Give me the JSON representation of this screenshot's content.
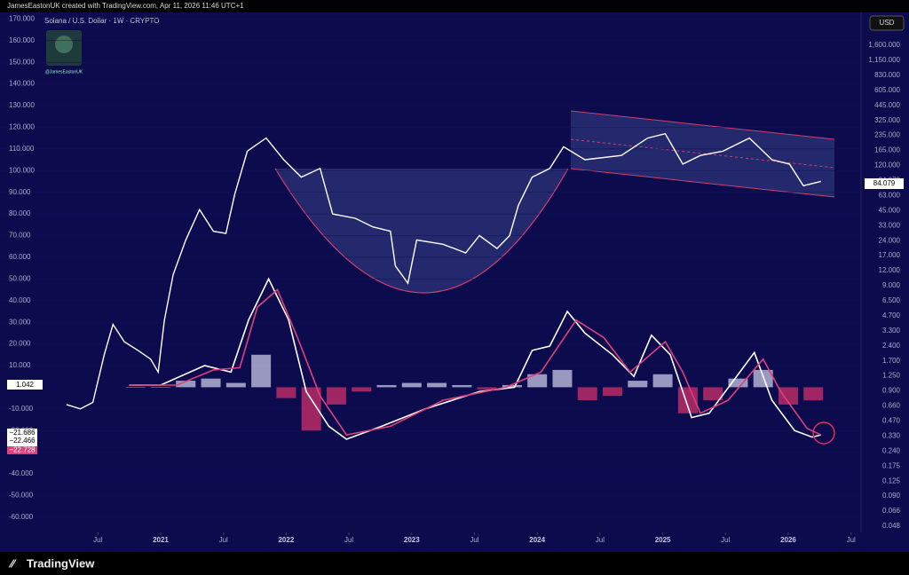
{
  "header": "JamesEastonUK created with TradingView.com, Apr 11, 2026 11:46 UTC+1",
  "footer": "TradingView",
  "watermark": "@JamesEastonUK",
  "currency": "USD",
  "last_price": "84.079",
  "indicator_labels": [
    "1.042",
    "−21.686",
    "−22.466",
    "−22.728"
  ],
  "price_scale": {
    "labels": [
      "1,600.000",
      "1,150.000",
      "830.000",
      "605.000",
      "445.000",
      "325.000",
      "235.000",
      "165.000",
      "120.000",
      "84.079",
      "63.000",
      "45.000",
      "33.000",
      "24.000",
      "17.000",
      "12.000",
      "9.000",
      "6.500",
      "4.700",
      "3.300",
      "2.400",
      "1.700",
      "1.250",
      "0.900",
      "0.660",
      "0.470",
      "0.330",
      "0.240",
      "0.175",
      "0.125",
      "0.090",
      "0.066",
      "0.048"
    ]
  },
  "chart_data": {
    "type": "line",
    "title": "Solana / U.S. Dollar · 1W · CRYPTO",
    "xlim": [
      2019.72,
      2026.58
    ],
    "xticks": [
      {
        "value": 2020.5,
        "label": "Jul"
      },
      2021,
      {
        "value": 2021.5,
        "label": "Jul"
      },
      2022,
      {
        "value": 2022.5,
        "label": "Jul"
      },
      2023,
      {
        "value": 2023.5,
        "label": "Jul"
      },
      2024,
      {
        "value": 2024.5,
        "label": "Jul"
      },
      2025,
      {
        "value": 2025.5,
        "label": "Jul"
      },
      2026,
      {
        "value": 2026.5,
        "label": "Jul"
      }
    ],
    "ylim": [
      -67,
      173
    ],
    "yticks": [
      {
        "value": 170,
        "label": "170.000"
      },
      {
        "value": 160,
        "label": "160.000"
      },
      {
        "value": 150,
        "label": "150.000"
      },
      {
        "value": 140,
        "label": "140.000"
      },
      {
        "value": 130,
        "label": "130.000"
      },
      {
        "value": 120,
        "label": "120.000"
      },
      {
        "value": 110,
        "label": "110.000"
      },
      {
        "value": 100,
        "label": "100.000"
      },
      {
        "value": 90,
        "label": "90.000"
      },
      {
        "value": 80,
        "label": "80.000"
      },
      {
        "value": 70,
        "label": "70.000"
      },
      {
        "value": 60,
        "label": "60.000"
      },
      {
        "value": 50,
        "label": "50.000"
      },
      {
        "value": 40,
        "label": "40.000"
      },
      {
        "value": 30,
        "label": "30.000"
      },
      {
        "value": 20,
        "label": "20.000"
      },
      {
        "value": 10,
        "label": "10.000"
      },
      {
        "value": -10,
        "label": "-10.000"
      },
      {
        "value": -20,
        "label": "-20.000"
      },
      {
        "value": -30,
        "label": "-30.000"
      },
      {
        "value": -40,
        "label": "-40.000"
      },
      {
        "value": -50,
        "label": "-50.000"
      },
      {
        "value": -60,
        "label": "-60.000"
      }
    ],
    "series": [
      {
        "color": "#ffffff",
        "x": [
          2020.25,
          2020.36,
          2020.46,
          2020.55,
          2020.62,
          2020.71,
          2020.82,
          2020.92,
          2020.98,
          2021.03,
          2021.1,
          2021.2,
          2021.31,
          2021.42,
          2021.52,
          2021.59,
          2021.69,
          2021.84,
          2021.98,
          2022.12,
          2022.27,
          2022.37,
          2022.55,
          2022.69,
          2022.83,
          2022.87,
          2022.97,
          2023.04,
          2023.25,
          2023.43,
          2023.54,
          2023.68,
          2023.78,
          2023.85,
          2023.96,
          2024.1,
          2024.21,
          2024.38,
          2024.67,
          2024.88,
          2025.02,
          2025.16,
          2025.3,
          2025.48,
          2025.69,
          2025.87,
          2026.01,
          2026.12,
          2026.26
        ],
        "values": [
          -8,
          -10,
          -7,
          15,
          29,
          21,
          17,
          13,
          7,
          31,
          52,
          68,
          82,
          72,
          71,
          89,
          109,
          115,
          105,
          97,
          101,
          80,
          78,
          74,
          72,
          56,
          48,
          68,
          66,
          62,
          70,
          64,
          70,
          84,
          97,
          101,
          111,
          105,
          107,
          115,
          117,
          103,
          107,
          109,
          115,
          105,
          103,
          93,
          95
        ]
      },
      {
        "color": "#ffffff",
        "x": [
          2020.75,
          2021.0,
          2021.35,
          2021.56,
          2021.7,
          2021.86,
          2022.02,
          2022.16,
          2022.34,
          2022.48,
          2022.76,
          2023.11,
          2023.54,
          2023.82,
          2023.96,
          2024.1,
          2024.24,
          2024.38,
          2024.6,
          2024.77,
          2024.91,
          2025.06,
          2025.23,
          2025.37,
          2025.55,
          2025.73,
          2025.87,
          2026.05,
          2026.19,
          2026.26
        ],
        "values": [
          1,
          1,
          10,
          7,
          31,
          50,
          31,
          -2,
          -18,
          -24,
          -18,
          -10,
          -2,
          0,
          17,
          19,
          35,
          25,
          15,
          5,
          24,
          15,
          -14,
          -12,
          2,
          16,
          -6,
          -20,
          -23,
          -22
        ]
      },
      {
        "color": "#e0407a",
        "x": [
          2020.75,
          2021.13,
          2021.42,
          2021.63,
          2021.77,
          2021.93,
          2022.09,
          2022.27,
          2022.48,
          2022.83,
          2023.25,
          2023.75,
          2024.03,
          2024.31,
          2024.53,
          2024.74,
          2025.02,
          2025.16,
          2025.3,
          2025.52,
          2025.8,
          2025.94,
          2026.15,
          2026.26
        ],
        "values": [
          1,
          1,
          8,
          9,
          37,
          45,
          23,
          -4,
          -22,
          -18,
          -6,
          0,
          7,
          31,
          23,
          7,
          21,
          7,
          -12,
          -6,
          13,
          -2,
          -19,
          -22
        ]
      }
    ],
    "histogram": {
      "up_color": "#c9c9e6",
      "down_color": "#d0306a",
      "x": [
        2020.8,
        2021.0,
        2021.2,
        2021.4,
        2021.6,
        2021.8,
        2022.0,
        2022.2,
        2022.4,
        2022.6,
        2022.8,
        2023.0,
        2023.2,
        2023.4,
        2023.6,
        2023.8,
        2024.0,
        2024.2,
        2024.4,
        2024.6,
        2024.8,
        2025.0,
        2025.2,
        2025.4,
        2025.6,
        2025.8,
        2026.0,
        2026.2
      ],
      "values": [
        0,
        0,
        3,
        4,
        2,
        15,
        -5,
        -20,
        -8,
        -2,
        1,
        2,
        2,
        1,
        -1,
        1,
        6,
        8,
        -6,
        -4,
        3,
        6,
        -12,
        -6,
        4,
        8,
        -8,
        -6
      ]
    }
  }
}
